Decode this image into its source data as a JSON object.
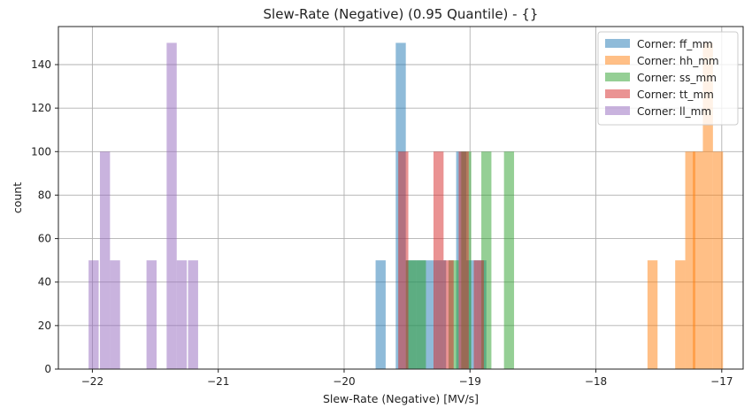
{
  "chart_data": {
    "type": "bar",
    "subtype": "histogram",
    "title": "Slew-Rate (Negative) (0.95 Quantile) - {}",
    "xlabel": "Slew-Rate (Negative) [MV/s]",
    "ylabel": "count",
    "xlim": [
      -22.27,
      -16.83
    ],
    "ylim": [
      0,
      157.5
    ],
    "xticks": [
      -22,
      -21,
      -20,
      -19,
      -18,
      -17
    ],
    "yticks": [
      0,
      20,
      40,
      60,
      80,
      100,
      120,
      140
    ],
    "grid": true,
    "legend_position": "top-right",
    "bin_width": 0.08,
    "series": [
      {
        "name": "Corner: ff_mm",
        "color": "#1f77b4",
        "bins": [
          {
            "x": -19.71,
            "count": 50
          },
          {
            "x": -19.55,
            "count": 150
          },
          {
            "x": -19.47,
            "count": 50
          },
          {
            "x": -19.39,
            "count": 50
          },
          {
            "x": -19.31,
            "count": 50
          },
          {
            "x": -19.23,
            "count": 50
          },
          {
            "x": -19.07,
            "count": 100
          },
          {
            "x": -18.99,
            "count": 50
          },
          {
            "x": -18.91,
            "count": 50
          }
        ]
      },
      {
        "name": "Corner: hh_mm",
        "color": "#ff7f0e",
        "bins": [
          {
            "x": -17.55,
            "count": 50
          },
          {
            "x": -17.33,
            "count": 50
          },
          {
            "x": -17.25,
            "count": 100
          },
          {
            "x": -17.19,
            "count": 100
          },
          {
            "x": -17.11,
            "count": 150
          },
          {
            "x": -17.03,
            "count": 100
          }
        ]
      },
      {
        "name": "Corner: ss_mm",
        "color": "#2ca02c",
        "bins": [
          {
            "x": -19.47,
            "count": 50
          },
          {
            "x": -19.39,
            "count": 50
          },
          {
            "x": -19.13,
            "count": 50
          },
          {
            "x": -19.03,
            "count": 100
          },
          {
            "x": -18.87,
            "count": 100
          },
          {
            "x": -18.69,
            "count": 100
          }
        ]
      },
      {
        "name": "Corner: tt_mm",
        "color": "#d62728",
        "bins": [
          {
            "x": -19.53,
            "count": 100
          },
          {
            "x": -19.25,
            "count": 100
          },
          {
            "x": -19.17,
            "count": 50
          },
          {
            "x": -19.05,
            "count": 100
          },
          {
            "x": -18.93,
            "count": 50
          }
        ]
      },
      {
        "name": "Corner: ll_mm",
        "color": "#9467bd",
        "bins": [
          {
            "x": -21.99,
            "count": 50
          },
          {
            "x": -21.9,
            "count": 100
          },
          {
            "x": -21.82,
            "count": 50
          },
          {
            "x": -21.53,
            "count": 50
          },
          {
            "x": -21.37,
            "count": 150
          },
          {
            "x": -21.29,
            "count": 50
          },
          {
            "x": -21.2,
            "count": 50
          }
        ]
      }
    ]
  }
}
